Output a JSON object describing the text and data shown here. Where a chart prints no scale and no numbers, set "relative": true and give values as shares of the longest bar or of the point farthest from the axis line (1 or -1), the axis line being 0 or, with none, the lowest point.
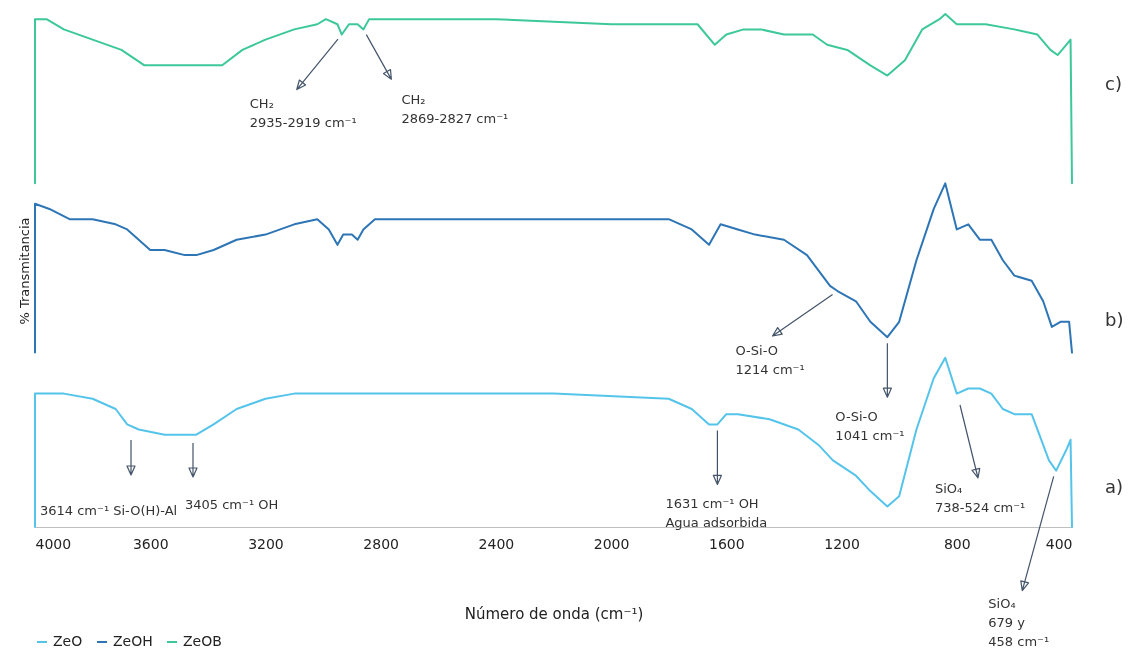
{
  "chart_data": {
    "type": "line",
    "xlabel": "Número de onda (cm⁻¹)",
    "ylabel": "% Transmitancia",
    "relative": true,
    "xlim": [
      4000,
      400
    ],
    "xticks": [
      4000,
      3600,
      3200,
      2800,
      2400,
      2000,
      1600,
      1200,
      800,
      400
    ],
    "legend": "bottom",
    "series": [
      {
        "name": "ZeO",
        "color": "#55c4ea",
        "x": [
          4000,
          4000,
          3900,
          3800,
          3720,
          3680,
          3640,
          3550,
          3480,
          3440,
          3380,
          3300,
          3200,
          3100,
          2950,
          2940,
          2900,
          2500,
          2200,
          1800,
          1720,
          1660,
          1631,
          1600,
          1560,
          1450,
          1350,
          1280,
          1230,
          1150,
          1100,
          1041,
          1000,
          940,
          880,
          840,
          800,
          760,
          720,
          680,
          640,
          600,
          540,
          480,
          455,
          420,
          405,
          400
        ],
        "values": [
          0,
          0.26,
          0.26,
          0.25,
          0.23,
          0.2,
          0.19,
          0.18,
          0.18,
          0.18,
          0.2,
          0.23,
          0.25,
          0.26,
          0.26,
          0.26,
          0.26,
          0.26,
          0.26,
          0.25,
          0.23,
          0.2,
          0.2,
          0.22,
          0.22,
          0.21,
          0.19,
          0.16,
          0.13,
          0.1,
          0.07,
          0.04,
          0.06,
          0.19,
          0.29,
          0.33,
          0.26,
          0.27,
          0.27,
          0.26,
          0.23,
          0.22,
          0.22,
          0.13,
          0.11,
          0.15,
          0.17,
          0
        ]
      },
      {
        "name": "ZeOH",
        "color": "#2e75b6",
        "x": [
          4000,
          4000,
          3950,
          3880,
          3800,
          3720,
          3680,
          3600,
          3550,
          3480,
          3440,
          3380,
          3300,
          3200,
          3100,
          3020,
          2980,
          2950,
          2930,
          2900,
          2880,
          2860,
          2820,
          2600,
          2400,
          2200,
          1800,
          1720,
          1660,
          1620,
          1560,
          1500,
          1400,
          1320,
          1240,
          1214,
          1150,
          1100,
          1041,
          1000,
          940,
          880,
          840,
          800,
          760,
          720,
          680,
          640,
          600,
          540,
          500,
          470,
          440,
          410,
          400
        ],
        "values": [
          0.34,
          0.63,
          0.62,
          0.6,
          0.6,
          0.59,
          0.58,
          0.54,
          0.54,
          0.53,
          0.53,
          0.54,
          0.56,
          0.57,
          0.59,
          0.6,
          0.58,
          0.55,
          0.57,
          0.57,
          0.56,
          0.58,
          0.6,
          0.6,
          0.6,
          0.6,
          0.6,
          0.58,
          0.55,
          0.59,
          0.58,
          0.57,
          0.56,
          0.53,
          0.47,
          0.46,
          0.44,
          0.4,
          0.37,
          0.4,
          0.52,
          0.62,
          0.67,
          0.58,
          0.59,
          0.56,
          0.56,
          0.52,
          0.49,
          0.48,
          0.44,
          0.39,
          0.4,
          0.4,
          0.34
        ]
      },
      {
        "name": "ZeOB",
        "color": "#3cc89a",
        "x": [
          4000,
          4000,
          3960,
          3900,
          3800,
          3700,
          3620,
          3500,
          3420,
          3350,
          3280,
          3200,
          3100,
          3020,
          2990,
          2950,
          2935,
          2910,
          2880,
          2860,
          2840,
          2400,
          2000,
          1700,
          1640,
          1600,
          1540,
          1480,
          1400,
          1300,
          1250,
          1180,
          1100,
          1041,
          980,
          920,
          860,
          840,
          800,
          760,
          700,
          600,
          520,
          475,
          450,
          420,
          405,
          400
        ],
        "values": [
          0.67,
          0.99,
          0.99,
          0.97,
          0.95,
          0.93,
          0.9,
          0.9,
          0.9,
          0.9,
          0.93,
          0.95,
          0.97,
          0.98,
          0.99,
          0.98,
          0.96,
          0.98,
          0.98,
          0.97,
          0.99,
          0.99,
          0.98,
          0.98,
          0.94,
          0.96,
          0.97,
          0.97,
          0.96,
          0.96,
          0.94,
          0.93,
          0.9,
          0.88,
          0.91,
          0.97,
          0.99,
          1,
          0.98,
          0.98,
          0.98,
          0.97,
          0.96,
          0.93,
          0.92,
          0.94,
          0.95,
          0.67
        ]
      }
    ],
    "annotations": [
      "3614 cm⁻¹  Si-O(H)-Al",
      "3405 cm⁻¹  OH",
      {
        "text": "CH₂\n2935-2919 cm⁻¹",
        "x": 2935,
        "y": 0.96
      },
      {
        "text": "CH₂\n2869-2827 cm⁻¹",
        "x": 2860,
        "y": 0.97
      },
      {
        "text": "O-Si-O\n1214 cm⁻¹",
        "x": 1214,
        "y": 0.46
      },
      {
        "text": "O-Si-O\n1041 cm⁻¹",
        "x": 1041,
        "y": 0.37
      },
      {
        "text": "1631 cm⁻¹ OH\nAgua adsorbida",
        "x": 1631,
        "y": 0.2
      },
      "SiO₄\n738-524 cm⁻¹",
      {
        "text": "SiO₄\n679 y\n458 cm⁻¹",
        "x": 458,
        "y": 0.11
      },
      {
        "text": "a)",
        "x": 400,
        "y": 0.07
      },
      {
        "text": "b)",
        "x": 400,
        "y": 0.4
      },
      {
        "text": "c)",
        "x": 400,
        "y": 0.86
      }
    ]
  }
}
